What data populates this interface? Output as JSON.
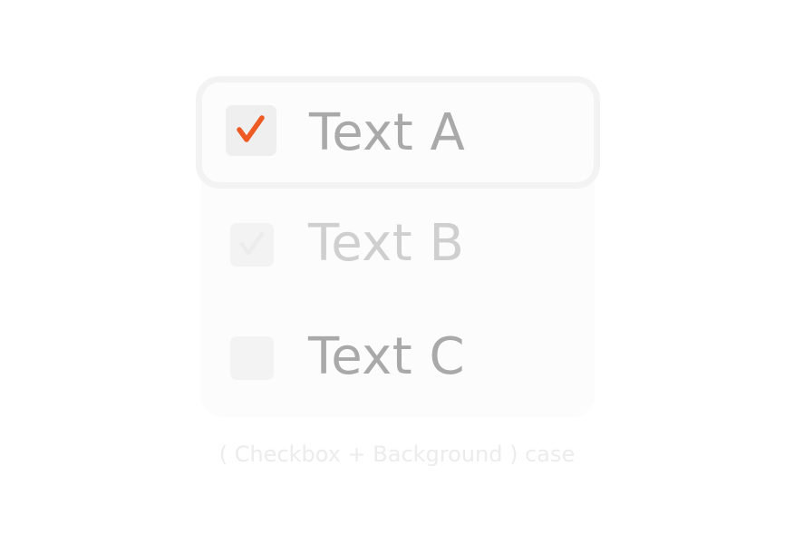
{
  "items": [
    {
      "label": "Text A",
      "state": "checked-focused"
    },
    {
      "label": "Text B",
      "state": "checked-disabled"
    },
    {
      "label": "Text C",
      "state": "unchecked"
    }
  ],
  "caption": "( Checkbox + Background ) case",
  "colors": {
    "accent": "#ee5a24",
    "text": "#a9a9a9",
    "text_disabled": "#cfcfcf",
    "checkbox_bg": "#f3f3f3",
    "focus_ring": "#f3f3f3",
    "caption": "#ececec"
  },
  "icons": {
    "checked": "checkmark-icon"
  }
}
